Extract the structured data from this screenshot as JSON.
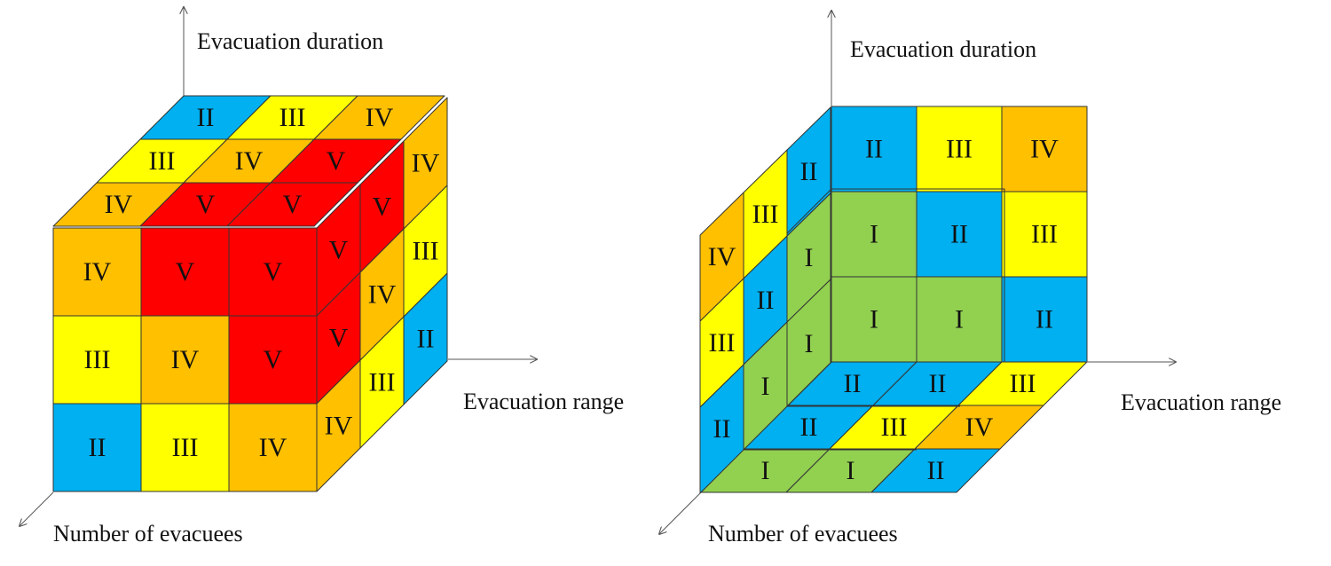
{
  "colors": {
    "I": "#92d050",
    "II": "#00b0f0",
    "III": "#ffff00",
    "IV": "#ffc000",
    "V": "#ff0000"
  },
  "axes": {
    "duration": "Evacuation duration",
    "range": "Evacuation range",
    "evacuees": "Number of evacuees"
  },
  "left_cube": {
    "front": [
      [
        "IV",
        "V",
        "V"
      ],
      [
        "III",
        "IV",
        "V"
      ],
      [
        "II",
        "III",
        "IV"
      ]
    ],
    "top": [
      [
        "II",
        "III",
        "IV"
      ],
      [
        "III",
        "IV",
        "V"
      ],
      [
        "IV",
        "V",
        "V"
      ]
    ],
    "right": [
      [
        "V",
        "V",
        "IV"
      ],
      [
        "V",
        "IV",
        "III"
      ],
      [
        "IV",
        "III",
        "II"
      ]
    ]
  },
  "right_cube": {
    "back": [
      [
        "II",
        "III",
        "IV"
      ],
      [
        "I",
        "II",
        "III"
      ],
      [
        "I",
        "I",
        "II"
      ]
    ],
    "left": [
      [
        "IV",
        "III",
        "II"
      ],
      [
        "III",
        "II",
        "I"
      ],
      [
        "II",
        "I",
        "I"
      ]
    ],
    "bottom": [
      [
        "II",
        "II",
        "III"
      ],
      [
        "II",
        "III",
        "IV"
      ],
      [
        "I",
        "I",
        "II"
      ]
    ]
  }
}
